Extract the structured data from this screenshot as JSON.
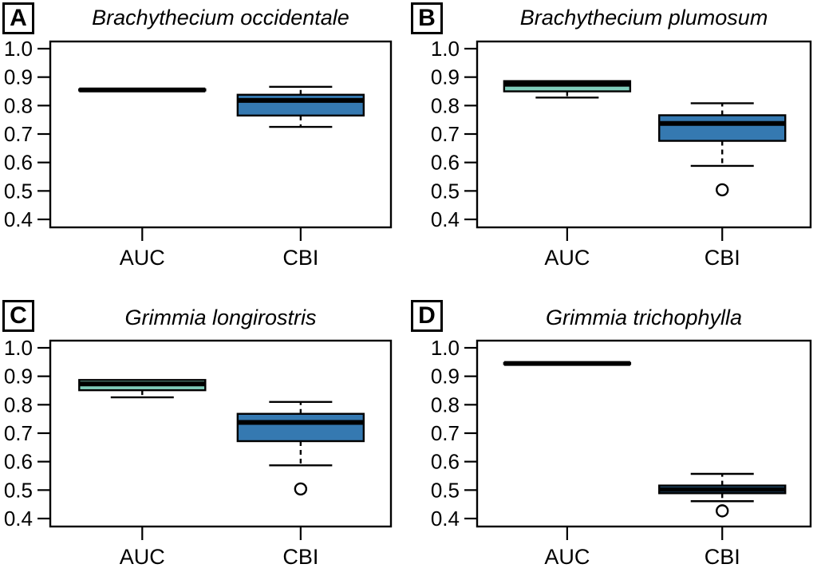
{
  "figure": {
    "background": "#FFFFFF",
    "stroke_color": "#000000",
    "auc_box_fill": "#7FCDBB",
    "cbi_box_fill": "#3579B1",
    "outlier_fill": "#FFFFFF"
  },
  "chart_data": [
    {
      "type": "boxplot",
      "panel": "A",
      "title": "Brachythecium occidentale",
      "categories": [
        "AUC",
        "CBI"
      ],
      "ylim": [
        0.4,
        1.0
      ],
      "ytick_labels": [
        "1.0",
        "0.9",
        "0.8",
        "0.7",
        "0.6",
        "0.5",
        "0.4"
      ],
      "legend": "none",
      "grid": false,
      "series": [
        {
          "name": "AUC",
          "q1": 0.853,
          "median": 0.855,
          "q3": 0.857,
          "whisker_low": 0.853,
          "whisker_high": 0.857,
          "outliers": [],
          "fill": "#7FCDBB"
        },
        {
          "name": "CBI",
          "q1": 0.765,
          "median": 0.818,
          "q3": 0.838,
          "whisker_low": 0.725,
          "whisker_high": 0.866,
          "outliers": [],
          "fill": "#3579B1"
        }
      ]
    },
    {
      "type": "boxplot",
      "panel": "B",
      "title": "Brachythecium plumosum",
      "categories": [
        "AUC",
        "CBI"
      ],
      "ylim": [
        0.4,
        1.0
      ],
      "ytick_labels": [
        "1.0",
        "0.9",
        "0.8",
        "0.7",
        "0.6",
        "0.5",
        "0.4"
      ],
      "legend": "none",
      "grid": false,
      "series": [
        {
          "name": "AUC",
          "q1": 0.85,
          "median": 0.875,
          "q3": 0.886,
          "whisker_low": 0.828,
          "whisker_high": 0.886,
          "outliers": [],
          "fill": "#7FCDBB"
        },
        {
          "name": "CBI",
          "q1": 0.676,
          "median": 0.737,
          "q3": 0.766,
          "whisker_low": 0.588,
          "whisker_high": 0.808,
          "outliers": [
            0.504
          ],
          "fill": "#3579B1"
        }
      ]
    },
    {
      "type": "boxplot",
      "panel": "C",
      "title": "Grimmia longirostris",
      "categories": [
        "AUC",
        "CBI"
      ],
      "ylim": [
        0.4,
        1.0
      ],
      "ytick_labels": [
        "1.0",
        "0.9",
        "0.8",
        "0.7",
        "0.6",
        "0.5",
        "0.4"
      ],
      "legend": "none",
      "grid": false,
      "series": [
        {
          "name": "AUC",
          "q1": 0.851,
          "median": 0.873,
          "q3": 0.887,
          "whisker_low": 0.826,
          "whisker_high": 0.887,
          "outliers": [],
          "fill": "#7FCDBB"
        },
        {
          "name": "CBI",
          "q1": 0.672,
          "median": 0.738,
          "q3": 0.768,
          "whisker_low": 0.587,
          "whisker_high": 0.81,
          "outliers": [
            0.504
          ],
          "fill": "#3579B1"
        }
      ]
    },
    {
      "type": "boxplot",
      "panel": "D",
      "title": "Grimmia trichophylla",
      "categories": [
        "AUC",
        "CBI"
      ],
      "ylim": [
        0.4,
        1.0
      ],
      "ytick_labels": [
        "1.0",
        "0.9",
        "0.8",
        "0.7",
        "0.6",
        "0.5",
        "0.4"
      ],
      "legend": "none",
      "grid": false,
      "series": [
        {
          "name": "AUC",
          "q1": 0.943,
          "median": 0.945,
          "q3": 0.947,
          "whisker_low": 0.943,
          "whisker_high": 0.947,
          "outliers": [],
          "fill": "#7FCDBB"
        },
        {
          "name": "CBI",
          "q1": 0.489,
          "median": 0.502,
          "q3": 0.516,
          "whisker_low": 0.461,
          "whisker_high": 0.557,
          "outliers": [
            0.427
          ],
          "fill": "#3579B1"
        }
      ]
    }
  ]
}
